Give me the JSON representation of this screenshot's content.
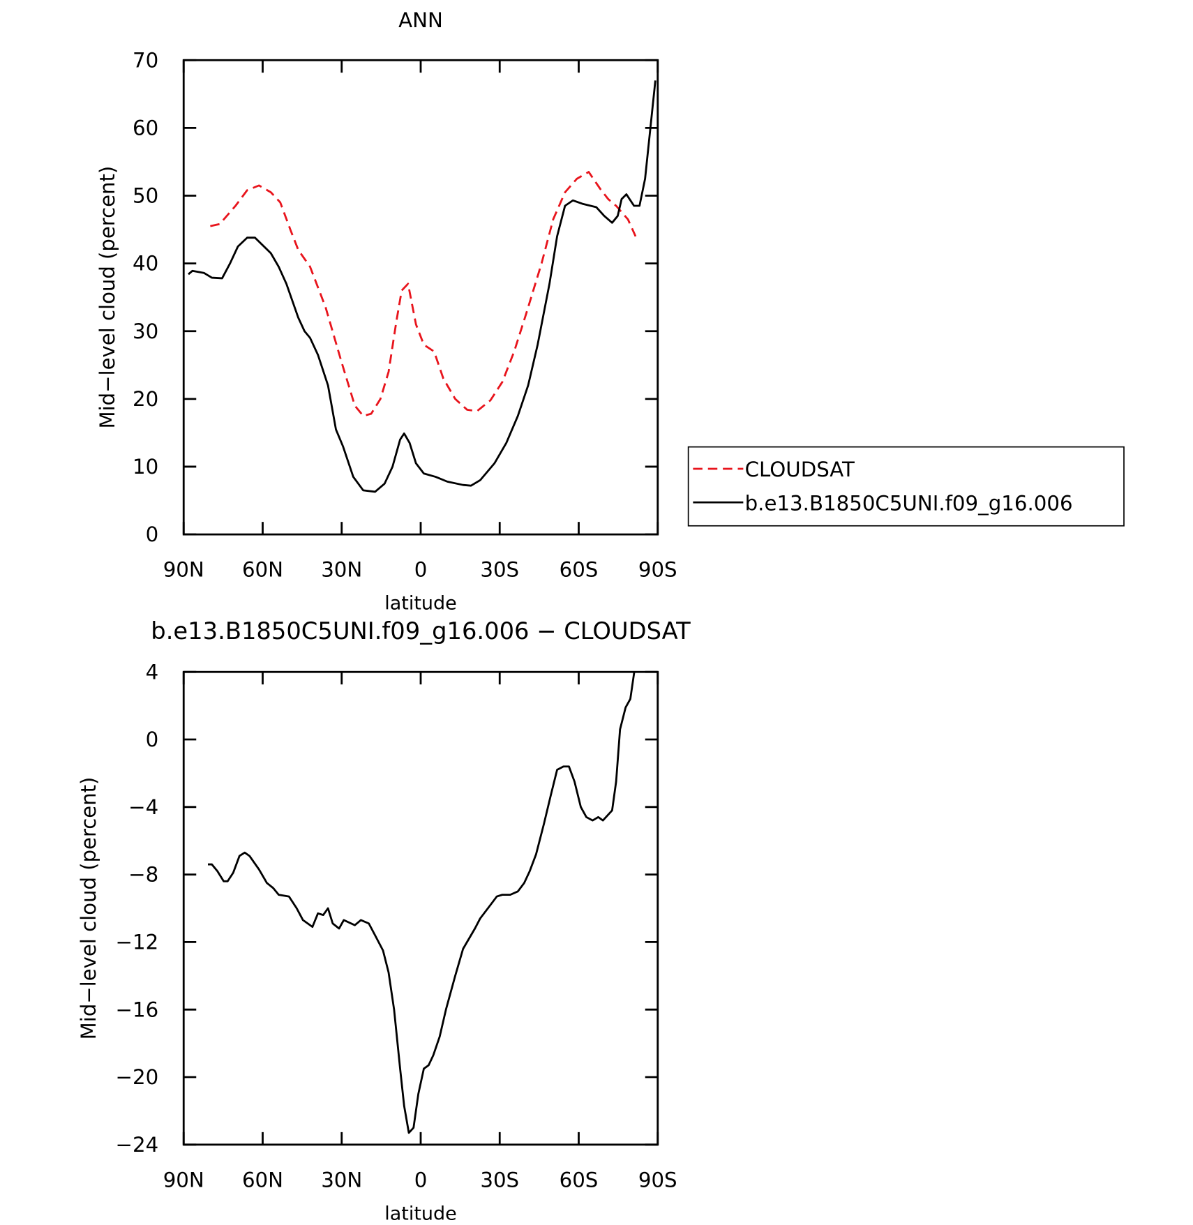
{
  "chart_data": [
    {
      "type": "line",
      "title": "ANN",
      "xlabel": "latitude",
      "ylabel": "Mid−level cloud (percent)",
      "xlim": [
        90,
        -90
      ],
      "ylim": [
        0,
        70
      ],
      "xticks": [
        {
          "value": 90,
          "label": "90N"
        },
        {
          "value": 60,
          "label": "60N"
        },
        {
          "value": 30,
          "label": "30N"
        },
        0,
        {
          "value": -30,
          "label": "30S"
        },
        {
          "value": -60,
          "label": "60S"
        },
        {
          "value": -90,
          "label": "90S"
        }
      ],
      "yticks": [
        0,
        10,
        20,
        30,
        40,
        50,
        60,
        70
      ],
      "legend": "right",
      "series": [
        {
          "name": "CLOUDSAT",
          "color": "#e8141c",
          "dashed": true,
          "x": [
            79.9,
            76.3,
            70.3,
            65.9,
            61.4,
            56.9,
            53.3,
            49.5,
            46.5,
            42,
            36.1,
            30.1,
            25,
            21.8,
            18.8,
            15.3,
            12.2,
            9.2,
            7.2,
            4.8,
            1.8,
            -1.2,
            -5.1,
            -8.6,
            -13.1,
            -17.6,
            -21.4,
            -26.5,
            -31,
            -35.5,
            -40,
            -45.9,
            -50.3,
            -54.8,
            -59.3,
            -63.8,
            -68.2,
            -71.2,
            -74.2,
            -78.7,
            -81.6
          ],
          "values": [
            45.5,
            45.8,
            48.5,
            50.8,
            51.5,
            50.5,
            49,
            45,
            42,
            39.5,
            33.5,
            25.5,
            19,
            17.5,
            17.8,
            20,
            24,
            31.5,
            36,
            37,
            31,
            28,
            27,
            23,
            20,
            18.4,
            18.2,
            19.8,
            22.5,
            27,
            32.5,
            40,
            46.5,
            50.5,
            52.5,
            53.5,
            51,
            49.5,
            48.5,
            46.5,
            44
          ]
        },
        {
          "name": "b.e13.B1850C5UNI.f09_g16.006",
          "color": "#000000",
          "dashed": false,
          "x": [
            88.2,
            86.7,
            82.3,
            79.3,
            75.4,
            72.4,
            69.4,
            65.9,
            62.9,
            56.9,
            53.9,
            51,
            46.5,
            44.1,
            42,
            39,
            35.2,
            32.2,
            29.5,
            25.6,
            21.8,
            17.3,
            13.7,
            10.7,
            7.8,
            6.3,
            4.2,
            1.8,
            -1.2,
            -5.7,
            -10.1,
            -16.1,
            -19.1,
            -22.6,
            -28,
            -32.5,
            -36.9,
            -40.8,
            -44.4,
            -48.9,
            -51.8,
            -54.8,
            -57.8,
            -61.4,
            -66.7,
            -69.7,
            -72.7,
            -74.8,
            -76.3,
            -78.1,
            -81,
            -83.1,
            -85.2,
            -89.1
          ],
          "values": [
            38.4,
            38.9,
            38.6,
            37.9,
            37.8,
            40,
            42.5,
            43.8,
            43.8,
            41.5,
            39.5,
            37,
            32,
            30,
            29,
            26.5,
            22,
            15.5,
            13,
            8.5,
            6.5,
            6.3,
            7.5,
            10,
            14,
            14.9,
            13.5,
            10.5,
            9,
            8.5,
            7.8,
            7.3,
            7.2,
            8,
            10.5,
            13.5,
            17.5,
            22,
            28,
            37,
            44,
            48.5,
            49.3,
            48.8,
            48.3,
            47,
            46,
            47,
            49.5,
            50.2,
            48.5,
            48.5,
            52.5,
            67
          ]
        }
      ]
    },
    {
      "type": "line",
      "title": "b.e13.B1850C5UNI.f09_g16.006 − CLOUDSAT",
      "xlabel": "latitude",
      "ylabel": "Mid−level cloud (percent)",
      "xlim": [
        90,
        -90
      ],
      "ylim": [
        -24,
        4
      ],
      "xticks": [
        {
          "value": 90,
          "label": "90N"
        },
        {
          "value": 60,
          "label": "60N"
        },
        {
          "value": 30,
          "label": "30N"
        },
        0,
        {
          "value": -30,
          "label": "30S"
        },
        {
          "value": -60,
          "label": "60S"
        },
        {
          "value": -90,
          "label": "90S"
        }
      ],
      "yticks": [
        {
          "value": -24,
          "label": "−24"
        },
        {
          "value": -20,
          "label": "−20"
        },
        {
          "value": -16,
          "label": "−16"
        },
        {
          "value": -12,
          "label": "−12"
        },
        {
          "value": -8,
          "label": "−8"
        },
        {
          "value": -4,
          "label": "−4"
        },
        0,
        4
      ],
      "series": [
        {
          "color": "#000000",
          "dashed": false,
          "x": [
            80.8,
            79.3,
            77.2,
            74.8,
            73.3,
            71.2,
            68.8,
            66.8,
            65,
            61.4,
            58.4,
            56,
            53.9,
            50,
            47.1,
            44.7,
            41.1,
            39,
            37,
            35.2,
            33.4,
            31,
            29.2,
            25,
            22.7,
            19.7,
            17.3,
            14.3,
            12.2,
            10.1,
            7.8,
            6.3,
            4.5,
            2.7,
            0.9,
            -1.2,
            -3,
            -4.8,
            -7.2,
            -9.6,
            -13.1,
            -16.1,
            -20.6,
            -22.6,
            -26.5,
            -28.9,
            -31,
            -34,
            -36.9,
            -39.3,
            -41.4,
            -43.8,
            -46.8,
            -49.4,
            -51.8,
            -54.2,
            -56.3,
            -58.4,
            -60.8,
            -62.9,
            -65.3,
            -67.4,
            -69.2,
            -72.7,
            -74.2,
            -75.7,
            -77.8,
            -79.6,
            -81.1
          ],
          "values": [
            -7.4,
            -7.4,
            -7.8,
            -8.4,
            -8.4,
            -7.9,
            -6.9,
            -6.7,
            -6.9,
            -7.7,
            -8.5,
            -8.8,
            -9.2,
            -9.3,
            -10,
            -10.7,
            -11.1,
            -10.3,
            -10.4,
            -10,
            -10.9,
            -11.2,
            -10.7,
            -11,
            -10.7,
            -10.9,
            -11.6,
            -12.5,
            -13.8,
            -16,
            -19.5,
            -21.7,
            -23.3,
            -23,
            -21,
            -19.5,
            -19.3,
            -18.7,
            -17.6,
            -16,
            -14,
            -12.4,
            -11.2,
            -10.6,
            -9.8,
            -9.3,
            -9.2,
            -9.2,
            -9,
            -8.5,
            -7.8,
            -6.8,
            -5,
            -3.3,
            -1.8,
            -1.6,
            -1.6,
            -2.5,
            -4,
            -4.6,
            -4.8,
            -4.6,
            -4.8,
            -4.2,
            -2.5,
            0.6,
            1.9,
            2.4,
            4
          ]
        }
      ]
    }
  ]
}
